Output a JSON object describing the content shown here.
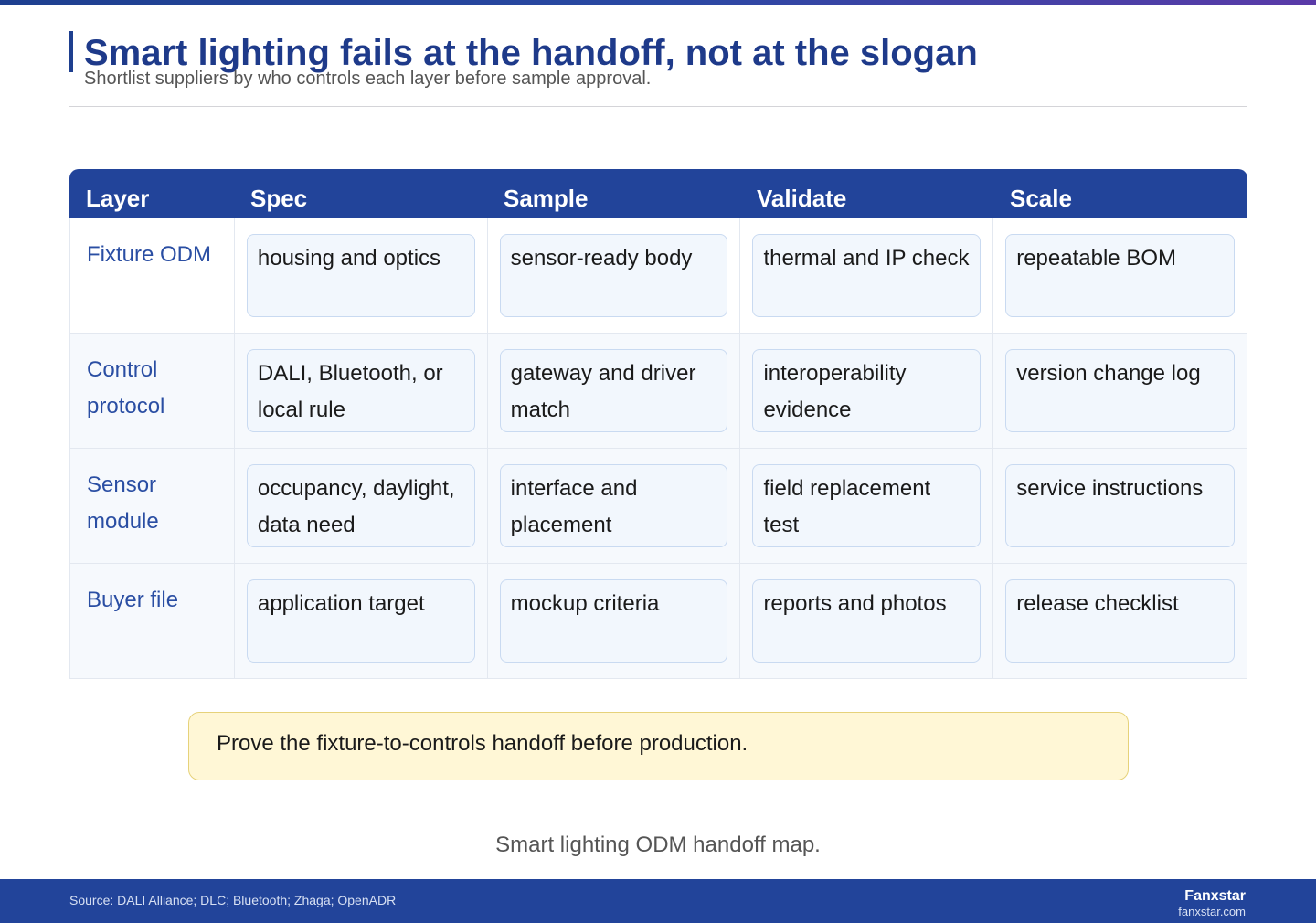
{
  "header": {
    "title": "Smart lighting fails at the handoff, not at the slogan",
    "subtitle": "Shortlist suppliers by who controls each layer before sample approval."
  },
  "table": {
    "columns": [
      "Layer",
      "Spec",
      "Sample",
      "Validate",
      "Scale"
    ],
    "rows": [
      {
        "layer": "Fixture ODM",
        "cells": [
          "housing and optics",
          "sensor-ready body",
          "thermal and IP check",
          "repeatable BOM"
        ]
      },
      {
        "layer": "Control protocol",
        "cells": [
          "DALI, Bluetooth, or local rule",
          "gateway and driver match",
          "interoperability evidence",
          "version change log"
        ]
      },
      {
        "layer": "Sensor module",
        "cells": [
          "occupancy, daylight, data need",
          "interface and placement",
          "field replacement test",
          "service instructions"
        ]
      },
      {
        "layer": "Buyer file",
        "cells": [
          "application target",
          "mockup criteria",
          "reports and photos",
          "release checklist"
        ]
      }
    ]
  },
  "callout": "Prove the fixture-to-controls handoff before production.",
  "caption": "Smart lighting ODM handoff map.",
  "footer": {
    "source": "Source: DALI Alliance; DLC; Bluetooth; Zhaga; OpenADR",
    "brand": "Fanxstar",
    "url": "fanxstar.com"
  }
}
